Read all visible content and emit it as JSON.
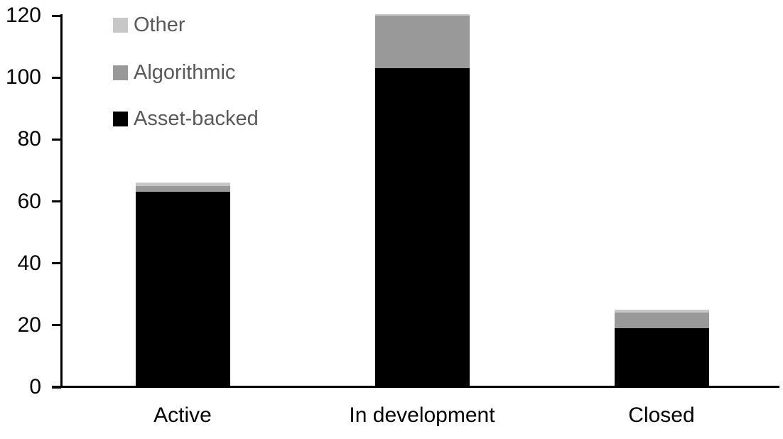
{
  "chart_data": {
    "type": "bar",
    "stacked": true,
    "title": "",
    "xlabel": "",
    "ylabel": "",
    "categories": [
      "Active",
      "In development",
      "Closed"
    ],
    "series": [
      {
        "name": "Asset-backed",
        "color": "#000000",
        "values": [
          63,
          103,
          19
        ]
      },
      {
        "name": "Algorithmic",
        "color": "#999999",
        "values": [
          2,
          17,
          5
        ]
      },
      {
        "name": "Other",
        "color": "#c7c7c7",
        "values": [
          1,
          0.5,
          1
        ]
      }
    ],
    "stack_totals": [
      66,
      120.5,
      25
    ],
    "yticks": [
      0,
      20,
      40,
      60,
      80,
      100,
      120
    ],
    "ylim": [
      0,
      120
    ],
    "grid": false,
    "legend_position": "top-left",
    "legend_order": [
      "Other",
      "Algorithmic",
      "Asset-backed"
    ],
    "axis_color": "#000000",
    "tick_label_color": "#000000",
    "category_label_color": "#000000",
    "legend_text_color": "#595959",
    "background_color": "#ffffff"
  }
}
